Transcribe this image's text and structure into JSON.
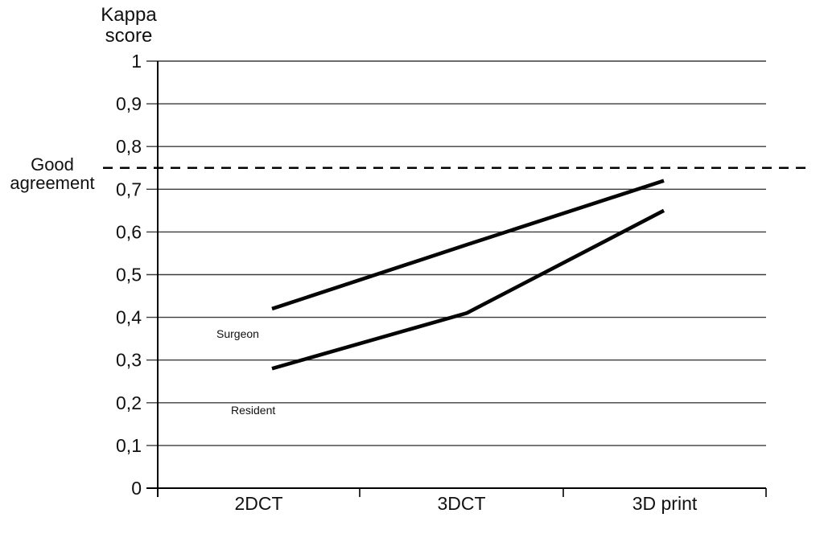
{
  "title": {
    "line1": "Kappa",
    "line2": "score"
  },
  "reference": {
    "label_line1": "Good",
    "label_line2": "agreement"
  },
  "chart_data": {
    "type": "line",
    "categories": [
      "2DCT",
      "3DCT",
      "3D print"
    ],
    "series": [
      {
        "name": "Surgeon",
        "values": [
          0.42,
          0.57,
          0.72
        ]
      },
      {
        "name": "Resident",
        "values": [
          0.28,
          0.41,
          0.65
        ]
      }
    ],
    "reference_line": {
      "value": 0.75,
      "label": "Good agreement",
      "style": "dashed"
    },
    "ylabel": "Kappa score",
    "xlabel": "",
    "ylim": [
      0,
      1
    ],
    "ytick_step": 0.1,
    "decimal_separator": ",",
    "grid": true,
    "legend_position": "inline-labels",
    "line_color": "#050505",
    "grid_color": "#3c3c3c",
    "axis_color": "#000000",
    "text_color": "#111111",
    "background": "#ffffff"
  }
}
